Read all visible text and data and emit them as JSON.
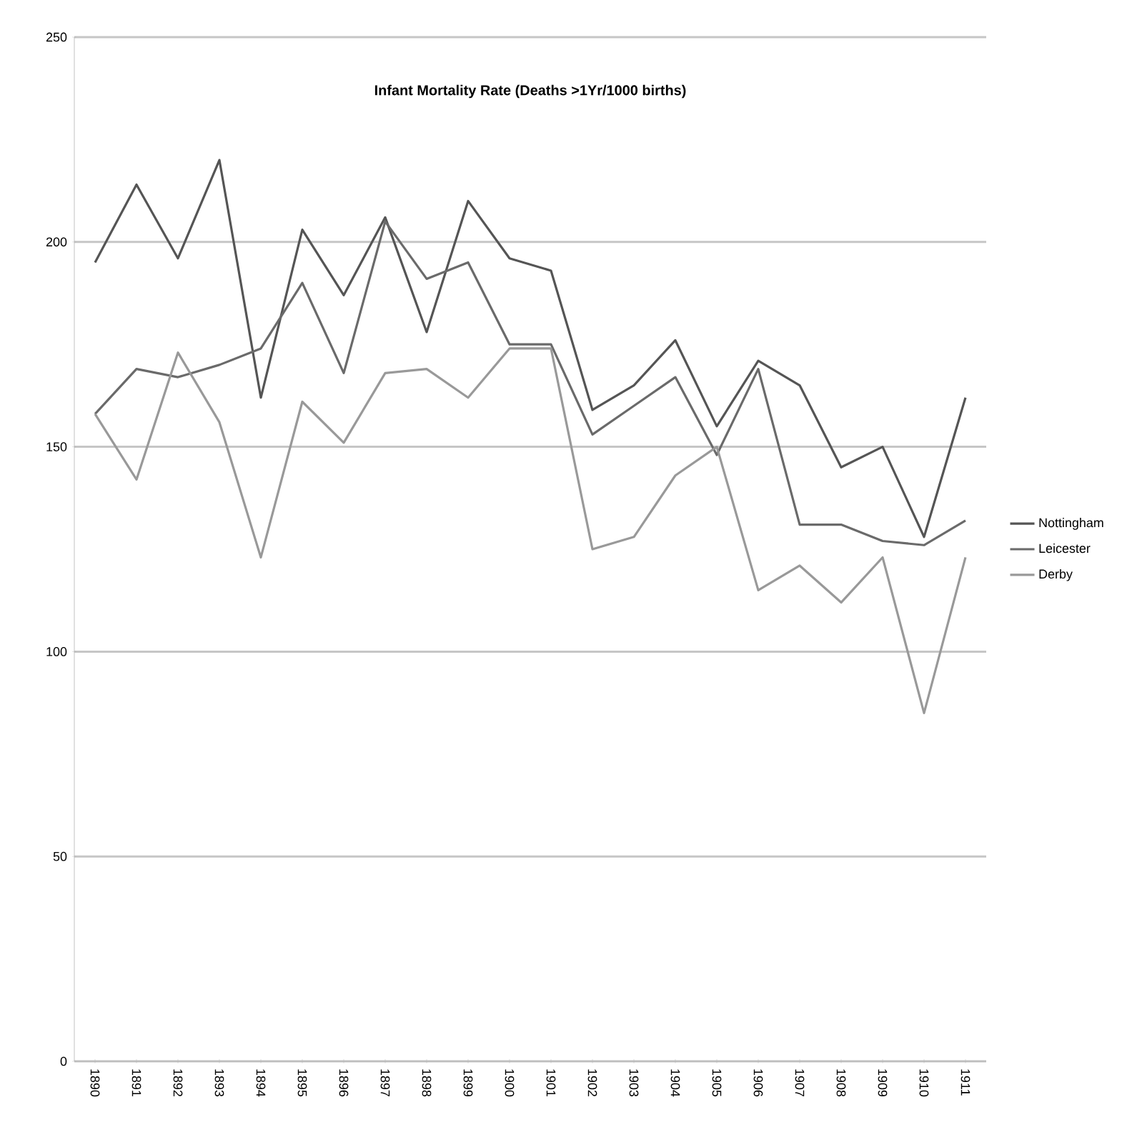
{
  "chart_data": {
    "type": "line",
    "title": "Infant Mortality Rate (Deaths >1Yr/1000 births)",
    "categories": [
      "1890",
      "1891",
      "1892",
      "1893",
      "1894",
      "1895",
      "1896",
      "1897",
      "1898",
      "1899",
      "1900",
      "1901",
      "1902",
      "1903",
      "1904",
      "1905",
      "1906",
      "1907",
      "1908",
      "1909",
      "1910",
      "1911"
    ],
    "series": [
      {
        "name": "Nottingham",
        "color": "#555555",
        "values": [
          195,
          214,
          196,
          220,
          162,
          203,
          187,
          206,
          178,
          210,
          196,
          193,
          159,
          165,
          176,
          155,
          171,
          165,
          145,
          150,
          128,
          162
        ]
      },
      {
        "name": "Leicester",
        "color": "#6a6a6a",
        "values": [
          158,
          169,
          167,
          170,
          174,
          190,
          168,
          205,
          191,
          195,
          175,
          175,
          153,
          160,
          167,
          148,
          169,
          131,
          131,
          127,
          126,
          132
        ]
      },
      {
        "name": "Derby",
        "color": "#999999",
        "values": [
          158,
          142,
          173,
          156,
          123,
          161,
          151,
          168,
          169,
          162,
          174,
          174,
          125,
          128,
          143,
          150,
          115,
          121,
          112,
          123,
          85,
          123
        ]
      }
    ],
    "ylim": [
      0,
      250
    ],
    "yticks": [
      0,
      50,
      100,
      150,
      200,
      250
    ],
    "grid": "y",
    "legend": "right",
    "marker": "none",
    "line_style": "solid"
  }
}
